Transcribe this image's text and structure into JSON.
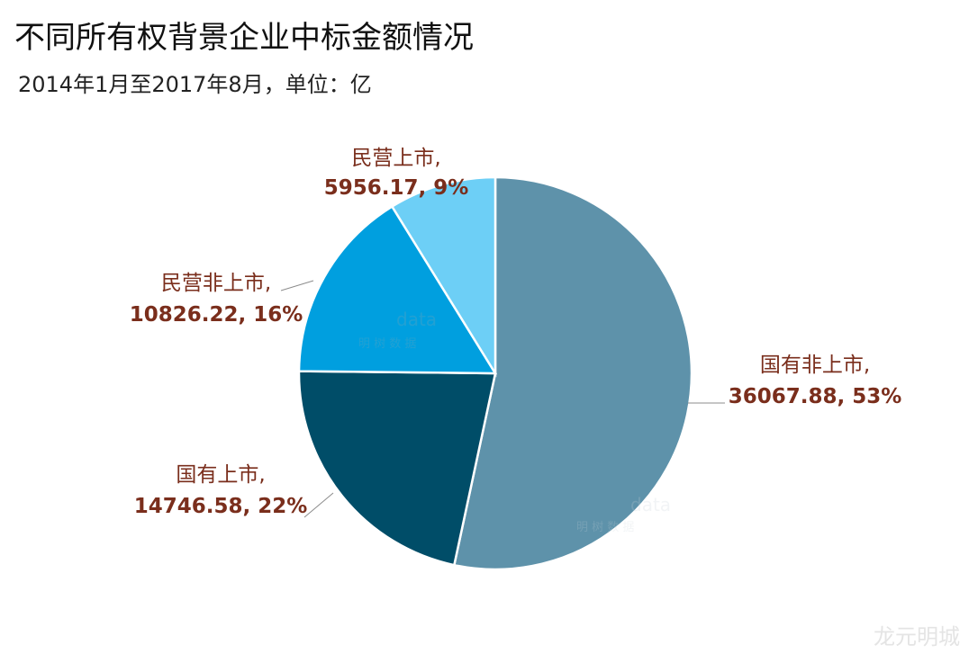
{
  "title": "不同所有权背景企业中标金额情况",
  "subtitle": "2014年1月至2017年8月，单位：亿",
  "watermark": "龙元明城",
  "brand_watermark": {
    "text": "data",
    "subtext": "明 树 数 据"
  },
  "chart_data": {
    "type": "pie",
    "title": "不同所有权背景企业中标金额情况",
    "subtitle": "2014年1月至2017年8月，单位：亿",
    "unit": "亿",
    "slices": [
      {
        "name": "国有非上市",
        "value": 36067.88,
        "percent": "53%",
        "color": "#5e92aa"
      },
      {
        "name": "国有上市",
        "value": 14746.58,
        "percent": "22%",
        "color": "#004d68"
      },
      {
        "name": "民营非上市",
        "value": 10826.22,
        "percent": "16%",
        "color": "#009fdf"
      },
      {
        "name": "民营上市",
        "value": 5956.17,
        "percent": "9%",
        "color": "#6dcff6"
      }
    ]
  }
}
